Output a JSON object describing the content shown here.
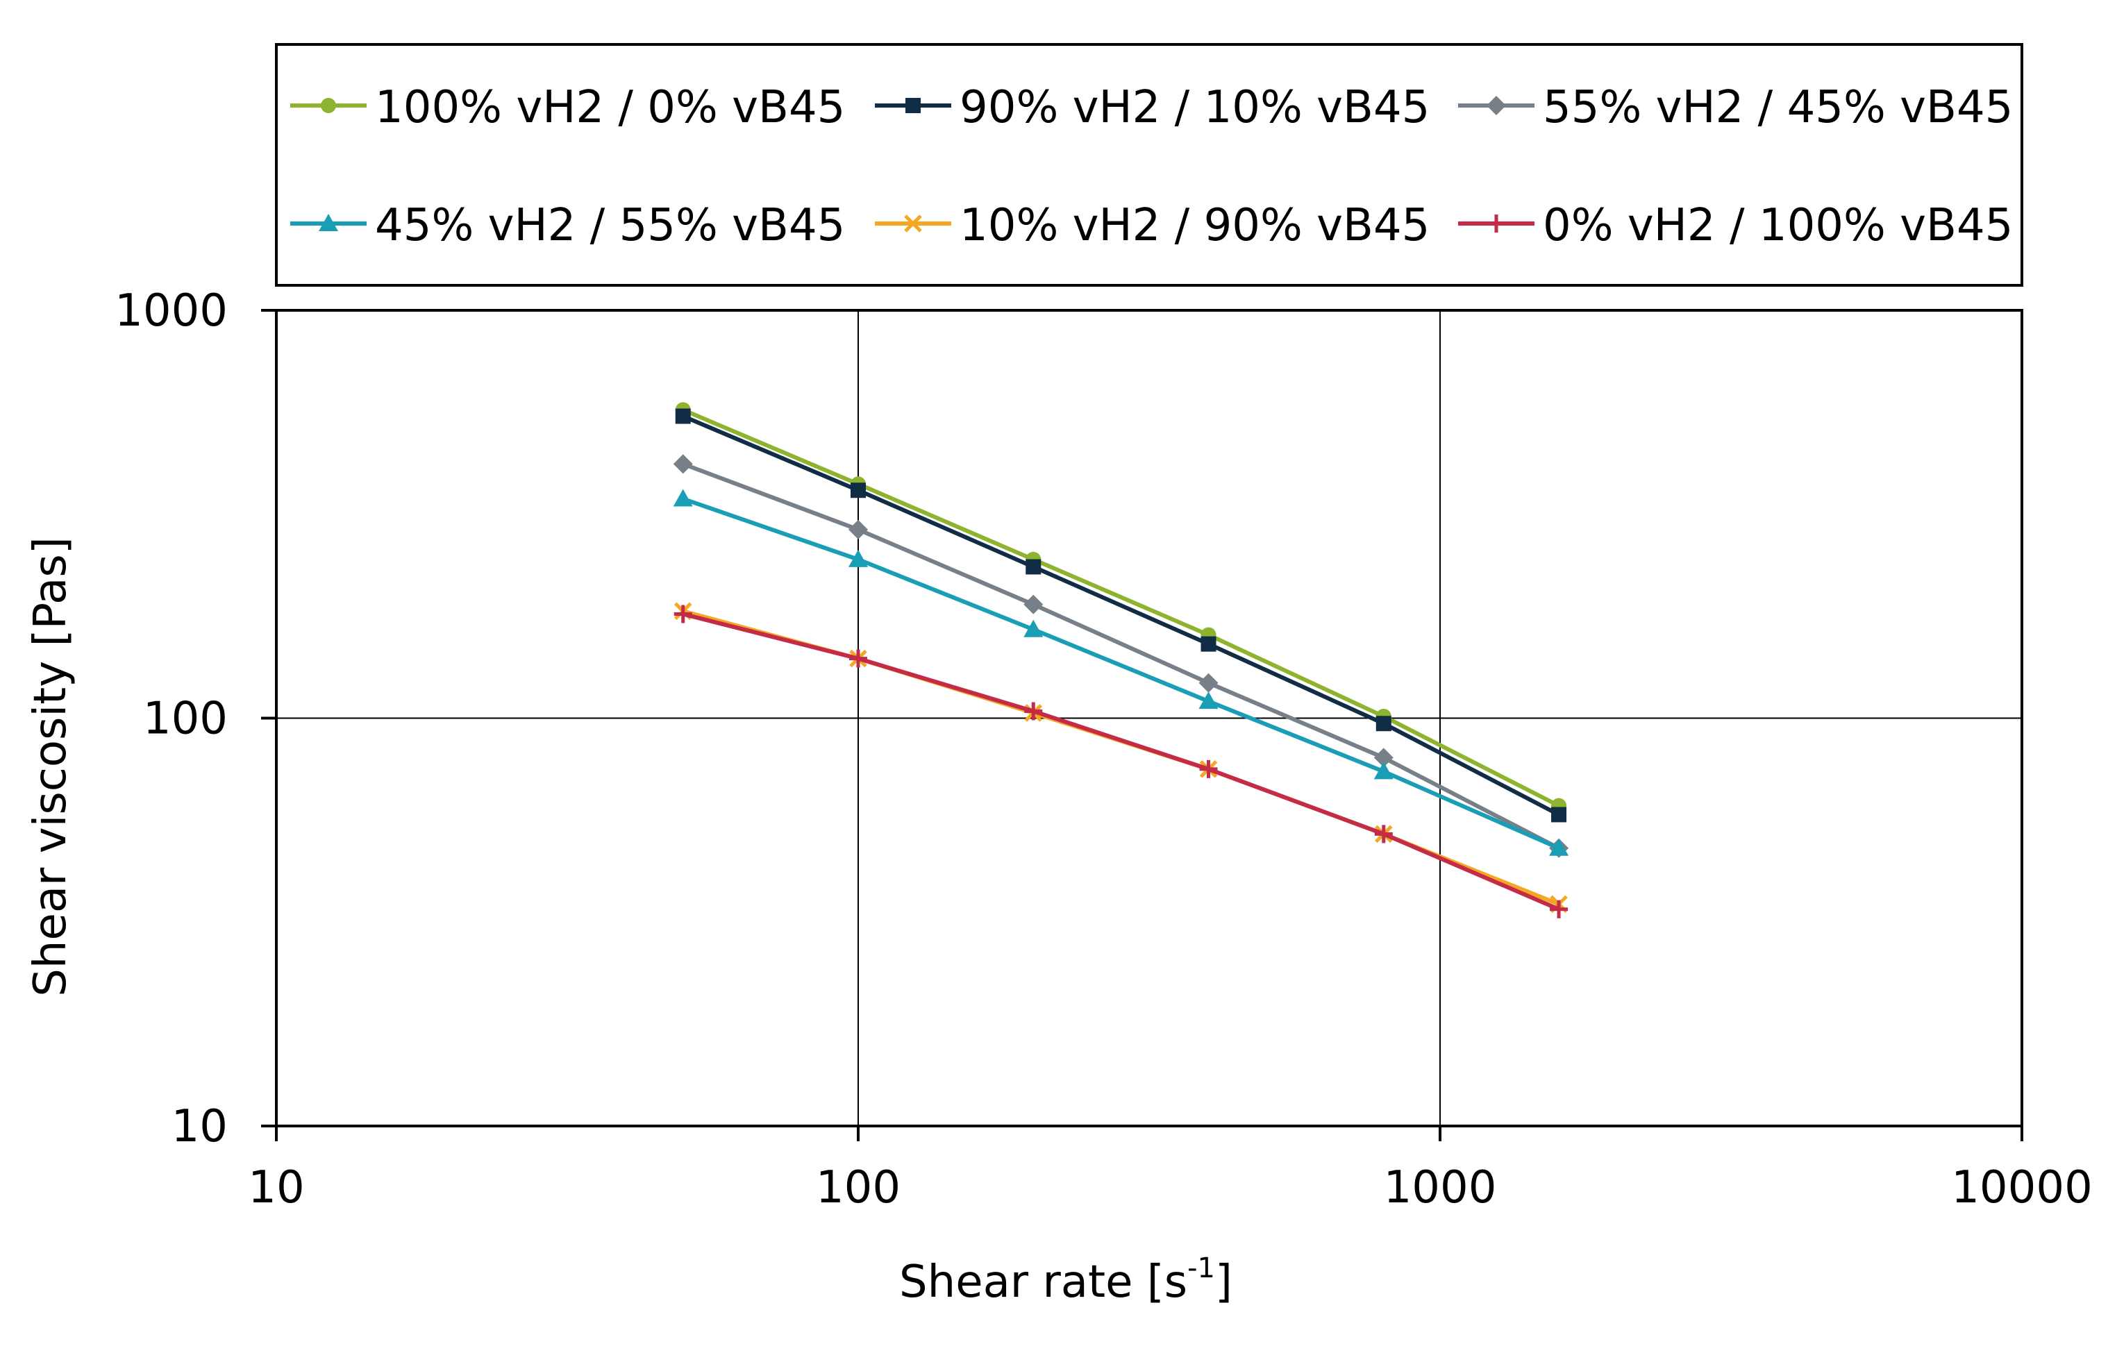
{
  "chart_data": {
    "type": "line",
    "x_scale": "log",
    "y_scale": "log",
    "xlim": [
      10,
      10000
    ],
    "ylim": [
      10,
      1000
    ],
    "x_ticks": [
      10,
      100,
      1000,
      10000
    ],
    "y_ticks": [
      10,
      100,
      1000
    ],
    "x_tick_labels": [
      "10",
      "100",
      "1000",
      "10000"
    ],
    "y_tick_labels": [
      "10",
      "100",
      "1000"
    ],
    "xlabel": "Shear rate   [s",
    "xlabel_sup": "-1",
    "xlabel_suffix": "]",
    "ylabel": "Shear viscosity   [Pas]",
    "grid": true,
    "legend_position": "top",
    "series": [
      {
        "name": "100% vH2 / 0% vB45",
        "color": "#8db32f",
        "marker": "circle",
        "x": [
          50,
          100,
          200,
          400,
          800,
          1600
        ],
        "y": [
          570,
          375,
          245,
          160,
          101,
          61
        ]
      },
      {
        "name": "90% vH2 / 10% vB45",
        "color": "#102d45",
        "marker": "square",
        "x": [
          50,
          100,
          200,
          400,
          800,
          1600
        ],
        "y": [
          550,
          362,
          235,
          152,
          97,
          58
        ]
      },
      {
        "name": "55% vH2 / 45% vB45",
        "color": "#778089",
        "marker": "diamond",
        "x": [
          50,
          100,
          200,
          400,
          800,
          1600
        ],
        "y": [
          420,
          290,
          190,
          122,
          80,
          48
        ]
      },
      {
        "name": "45% vH2 / 55% vB45",
        "color": "#1a9eb5",
        "marker": "triangle",
        "x": [
          50,
          100,
          200,
          400,
          800,
          1600
        ],
        "y": [
          345,
          245,
          165,
          110,
          74,
          48
        ]
      },
      {
        "name": "10% vH2 / 90% vB45",
        "color": "#f5a623",
        "marker": "x",
        "x": [
          50,
          100,
          200,
          400,
          800,
          1600
        ],
        "y": [
          183,
          140,
          103,
          75,
          52,
          35
        ]
      },
      {
        "name": "0% vH2 / 100% vB45",
        "color": "#c42b47",
        "marker": "plus",
        "x": [
          50,
          100,
          200,
          400,
          800,
          1600
        ],
        "y": [
          180,
          140,
          104,
          75,
          52,
          34
        ]
      }
    ]
  }
}
